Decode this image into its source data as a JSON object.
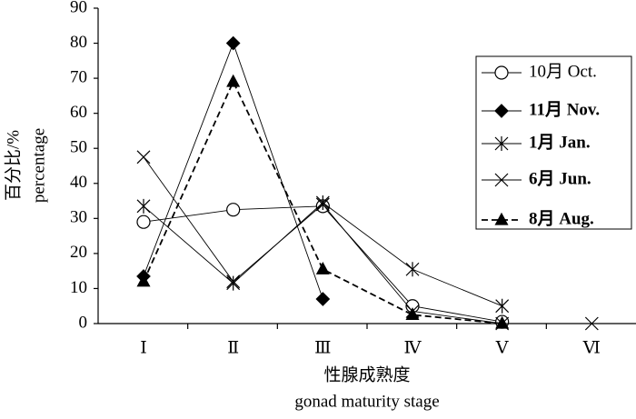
{
  "chart_data": {
    "type": "line",
    "categories": [
      "Ⅰ",
      "Ⅱ",
      "Ⅲ",
      "Ⅳ",
      "Ⅴ",
      "Ⅵ"
    ],
    "x_label": [
      "性腺成熟度",
      "gonad maturity stage"
    ],
    "y_label": [
      "百分比/%",
      "percentage"
    ],
    "ylim": [
      0,
      90
    ],
    "yticks": [
      0,
      10,
      20,
      30,
      40,
      50,
      60,
      70,
      80,
      90
    ],
    "legend": "right",
    "series": [
      {
        "name": "10月 Oct.",
        "color": "#000000",
        "marker": "circle",
        "dashed": false,
        "values": [
          29,
          32.5,
          33.5,
          5,
          0.5,
          null
        ]
      },
      {
        "name": "11月 Nov.",
        "color": "#000000",
        "marker": "diamond",
        "dashed": false,
        "values": [
          13.5,
          80,
          7,
          null,
          null,
          null
        ]
      },
      {
        "name": "1月 Jan.",
        "color": "#000000",
        "marker": "asterisk",
        "dashed": false,
        "values": [
          33.5,
          11.5,
          34.5,
          15.5,
          5,
          null
        ]
      },
      {
        "name": "6月 Jun.",
        "color": "#000000",
        "marker": "x",
        "dashed": false,
        "values": [
          47.5,
          12,
          34,
          3.5,
          0,
          0
        ]
      },
      {
        "name": "8月 Aug.",
        "color": "#000000",
        "marker": "triangle",
        "dashed": true,
        "values": [
          12,
          69,
          15.5,
          2.5,
          0,
          null
        ]
      }
    ]
  }
}
